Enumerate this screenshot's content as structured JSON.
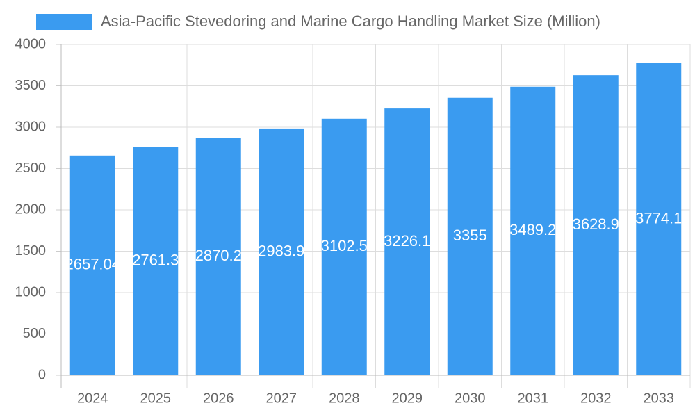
{
  "chart_data": {
    "type": "bar",
    "categories": [
      "2024",
      "2025",
      "2026",
      "2027",
      "2028",
      "2029",
      "2030",
      "2031",
      "2032",
      "2033"
    ],
    "series": [
      {
        "name": "Asia-Pacific Stevedoring and Marine Cargo Handling Market Size (Million)",
        "color": "#3a9bf0",
        "values": [
          2657.04,
          2761.3,
          2870.2,
          2983.9,
          3102.5,
          3226.1,
          3355.0,
          3489.2,
          3628.9,
          3774.1
        ]
      }
    ],
    "ylim": [
      0,
      4000
    ],
    "yticks": [
      0,
      500,
      1000,
      1500,
      2000,
      2500,
      3000,
      3500,
      4000
    ],
    "grid": true
  }
}
